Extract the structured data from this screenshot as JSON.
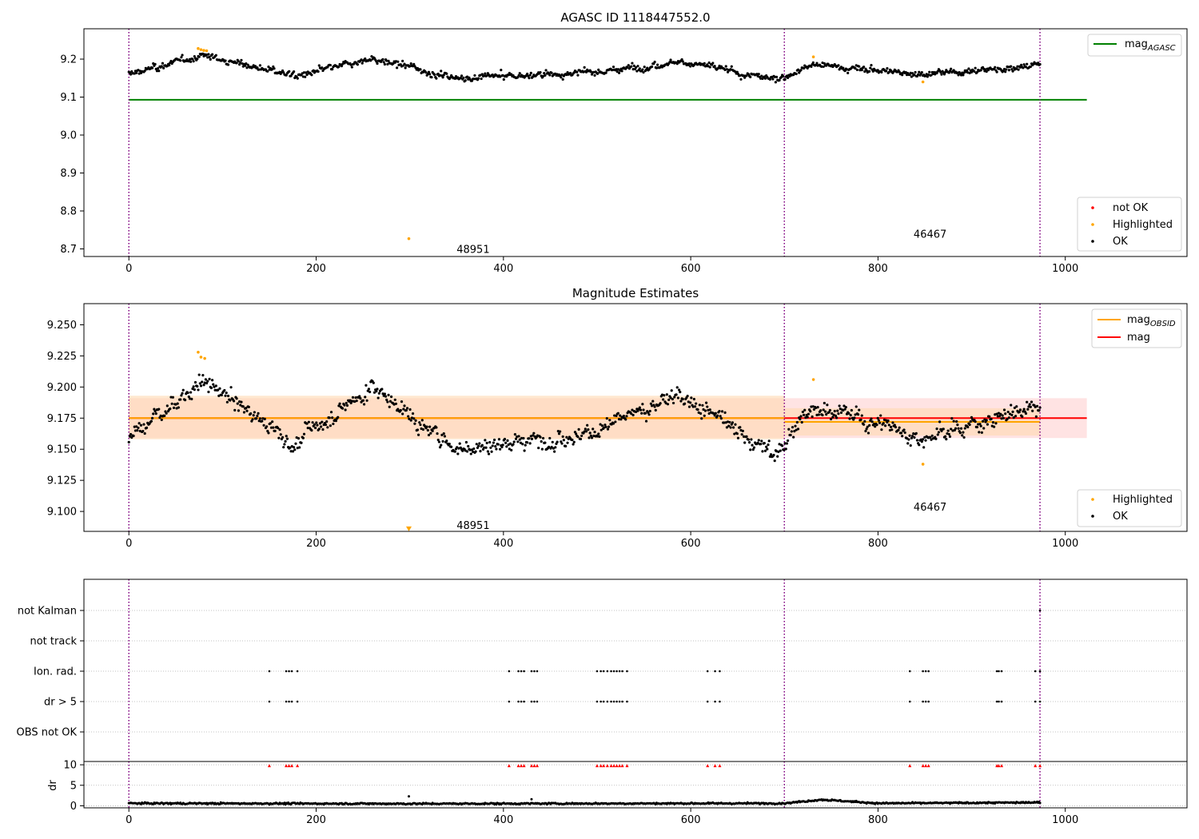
{
  "colors": {
    "ok": "#000000",
    "highlighted": "#ffa500",
    "not_ok": "#ff0000",
    "agasc_line": "#008000",
    "mag_line": "#ff0000",
    "obsid_line": "#ffa500",
    "obs_boundary": "#800080",
    "band_red": "#ffcccc",
    "band_orange": "#ffd9b0"
  },
  "chart_data": [
    {
      "type": "scatter",
      "title": "AGASC ID 1118447552.0",
      "xlim": [
        -48,
        1130
      ],
      "ylim": [
        8.68,
        9.28
      ],
      "x_ticks": [
        0,
        200,
        400,
        600,
        800,
        1000
      ],
      "x_tick_labels": [
        "0",
        "200",
        "400",
        "600",
        "800",
        "1000"
      ],
      "y_ticks": [
        8.7,
        8.8,
        8.9,
        9.0,
        9.1,
        9.2
      ],
      "y_tick_labels": [
        "8.7",
        "8.8",
        "8.9",
        "9.0",
        "9.1",
        "9.2"
      ],
      "obs_boundaries": [
        0,
        700,
        973
      ],
      "obs_labels": [
        {
          "text": "48951",
          "x": 350,
          "y": 8.7
        },
        {
          "text": "46467",
          "x": 838,
          "y": 8.74
        }
      ],
      "lines": [
        {
          "name": "mag_AGASC",
          "x": [
            0,
            1023
          ],
          "y": [
            9.093,
            9.093
          ],
          "color": "#008000"
        }
      ],
      "highlighted_points": [
        {
          "x": 74,
          "y": 9.228
        },
        {
          "x": 77,
          "y": 9.225
        },
        {
          "x": 80,
          "y": 9.223
        },
        {
          "x": 83,
          "y": 9.222
        },
        {
          "x": 299,
          "y": 8.727
        },
        {
          "x": 731,
          "y": 9.206
        },
        {
          "x": 848,
          "y": 9.14
        }
      ],
      "ok_series": {
        "count": 973,
        "x_range": [
          0,
          973
        ],
        "approx_levels": [
          {
            "x": 0,
            "y": 9.16
          },
          {
            "x": 80,
            "y": 9.21
          },
          {
            "x": 180,
            "y": 9.155
          },
          {
            "x": 260,
            "y": 9.2
          },
          {
            "x": 350,
            "y": 9.15
          },
          {
            "x": 500,
            "y": 9.165
          },
          {
            "x": 590,
            "y": 9.195
          },
          {
            "x": 690,
            "y": 9.145
          },
          {
            "x": 730,
            "y": 9.185
          },
          {
            "x": 850,
            "y": 9.16
          },
          {
            "x": 973,
            "y": 9.185
          }
        ]
      },
      "legends": [
        {
          "placement": "upper-right",
          "entries": [
            {
              "label": "mag",
              "sub": "AGASC",
              "kind": "line",
              "color": "#008000"
            }
          ]
        },
        {
          "placement": "lower-right",
          "entries": [
            {
              "label": "not OK",
              "kind": "dot",
              "color": "#ff0000"
            },
            {
              "label": "Highlighted",
              "kind": "dot",
              "color": "#ffa500"
            },
            {
              "label": "OK",
              "kind": "dot",
              "color": "#000000"
            }
          ]
        }
      ]
    },
    {
      "type": "scatter",
      "title": "Magnitude Estimates",
      "xlim": [
        -48,
        1130
      ],
      "ylim": [
        9.084,
        9.267
      ],
      "x_ticks": [
        0,
        200,
        400,
        600,
        800,
        1000
      ],
      "x_tick_labels": [
        "0",
        "200",
        "400",
        "600",
        "800",
        "1000"
      ],
      "y_ticks": [
        9.1,
        9.125,
        9.15,
        9.175,
        9.2,
        9.225,
        9.25
      ],
      "y_tick_labels": [
        "9.100",
        "9.125",
        "9.150",
        "9.175",
        "9.200",
        "9.225",
        "9.250"
      ],
      "obs_boundaries": [
        0,
        700,
        973
      ],
      "obs_labels": [
        {
          "text": "48951",
          "x": 350,
          "y": 9.089
        },
        {
          "text": "46467",
          "x": 838,
          "y": 9.104
        }
      ],
      "bands": [
        {
          "x": [
            0,
            1023
          ],
          "y": [
            9.159,
            9.191
          ],
          "color": "#ffcccc"
        },
        {
          "x": [
            0,
            700
          ],
          "y": [
            9.158,
            9.193
          ],
          "color": "#ffd9b0"
        },
        {
          "x": [
            700,
            973
          ],
          "y": [
            9.161,
            9.183
          ],
          "color": "#ffd9b0"
        }
      ],
      "lines": [
        {
          "name": "mag",
          "x": [
            0,
            1023
          ],
          "y": [
            9.175,
            9.175
          ],
          "color": "#ff0000"
        },
        {
          "name": "mag_OBSID",
          "x": [
            0,
            700
          ],
          "y": [
            9.175,
            9.175
          ],
          "color": "#ffa500"
        },
        {
          "name": "mag_OBSID",
          "x": [
            700,
            973
          ],
          "y": [
            9.172,
            9.172
          ],
          "color": "#ffa500"
        }
      ],
      "highlighted_points": [
        {
          "x": 74,
          "y": 9.228
        },
        {
          "x": 77,
          "y": 9.224
        },
        {
          "x": 81,
          "y": 9.223
        },
        {
          "x": 731,
          "y": 9.206
        },
        {
          "x": 848,
          "y": 9.138
        }
      ],
      "off_scale_markers": [
        {
          "x": 299,
          "y": 9.086
        }
      ],
      "ok_series": {
        "count": 973,
        "x_range": [
          0,
          973
        ],
        "approx_levels": [
          {
            "x": 0,
            "y": 9.16
          },
          {
            "x": 80,
            "y": 9.205
          },
          {
            "x": 175,
            "y": 9.155
          },
          {
            "x": 260,
            "y": 9.2
          },
          {
            "x": 350,
            "y": 9.15
          },
          {
            "x": 500,
            "y": 9.165
          },
          {
            "x": 590,
            "y": 9.195
          },
          {
            "x": 690,
            "y": 9.145
          },
          {
            "x": 730,
            "y": 9.185
          },
          {
            "x": 850,
            "y": 9.16
          },
          {
            "x": 973,
            "y": 9.185
          }
        ]
      },
      "legends": [
        {
          "placement": "upper-right",
          "entries": [
            {
              "label": "mag",
              "sub": "OBSID",
              "kind": "line",
              "color": "#ffa500"
            },
            {
              "label": "mag",
              "sub": "",
              "kind": "line",
              "color": "#ff0000"
            }
          ]
        },
        {
          "placement": "lower-right",
          "entries": [
            {
              "label": "Highlighted",
              "kind": "dot",
              "color": "#ffa500"
            },
            {
              "label": "OK",
              "kind": "dot",
              "color": "#000000"
            }
          ]
        }
      ]
    },
    {
      "type": "scatter",
      "title": "",
      "xlim": [
        -48,
        1130
      ],
      "categories": [
        "not Kalman",
        "not track",
        "Ion. rad.",
        "dr > 5",
        "OBS not OK"
      ],
      "obs_boundaries": [
        0,
        700,
        973
      ],
      "flag_times": [
        150,
        168,
        171,
        174,
        180,
        406,
        416,
        419,
        422,
        430,
        433,
        436,
        500,
        504,
        507,
        511,
        515,
        518,
        521,
        524,
        527,
        532,
        618,
        626,
        631,
        834,
        848,
        851,
        854,
        927,
        929,
        932,
        968,
        973
      ],
      "flags": {
        "not Kalman": [
          973
        ],
        "not track": [],
        "Ion. rad.": "flag_times",
        "dr > 5": "flag_times",
        "OBS not OK": []
      }
    },
    {
      "type": "scatter",
      "title": "",
      "xlim": [
        -48,
        1130
      ],
      "ylim": [
        -0.5,
        10.8
      ],
      "ylabel": "dr",
      "y_ticks": [
        0,
        5,
        10
      ],
      "y_tick_labels": [
        "0",
        "5",
        "10"
      ],
      "x_ticks": [
        0,
        200,
        400,
        600,
        800,
        1000
      ],
      "x_tick_labels": [
        "0",
        "200",
        "400",
        "600",
        "800",
        "1000"
      ],
      "obs_boundaries": [
        0,
        700,
        973
      ],
      "clipped_markers": {
        "y": 9.8,
        "x": "flag_times"
      },
      "ok_series": {
        "count": 973,
        "x_range": [
          0,
          973
        ],
        "approx_levels": [
          {
            "x": 0,
            "y": 0.6
          },
          {
            "x": 300,
            "y": 0.5
          },
          {
            "x": 700,
            "y": 0.6
          },
          {
            "x": 740,
            "y": 1.5
          },
          {
            "x": 800,
            "y": 0.6
          },
          {
            "x": 973,
            "y": 0.8
          }
        ],
        "spikes": [
          {
            "x": 299,
            "y": 2.3
          },
          {
            "x": 430,
            "y": 1.6
          }
        ]
      }
    }
  ]
}
